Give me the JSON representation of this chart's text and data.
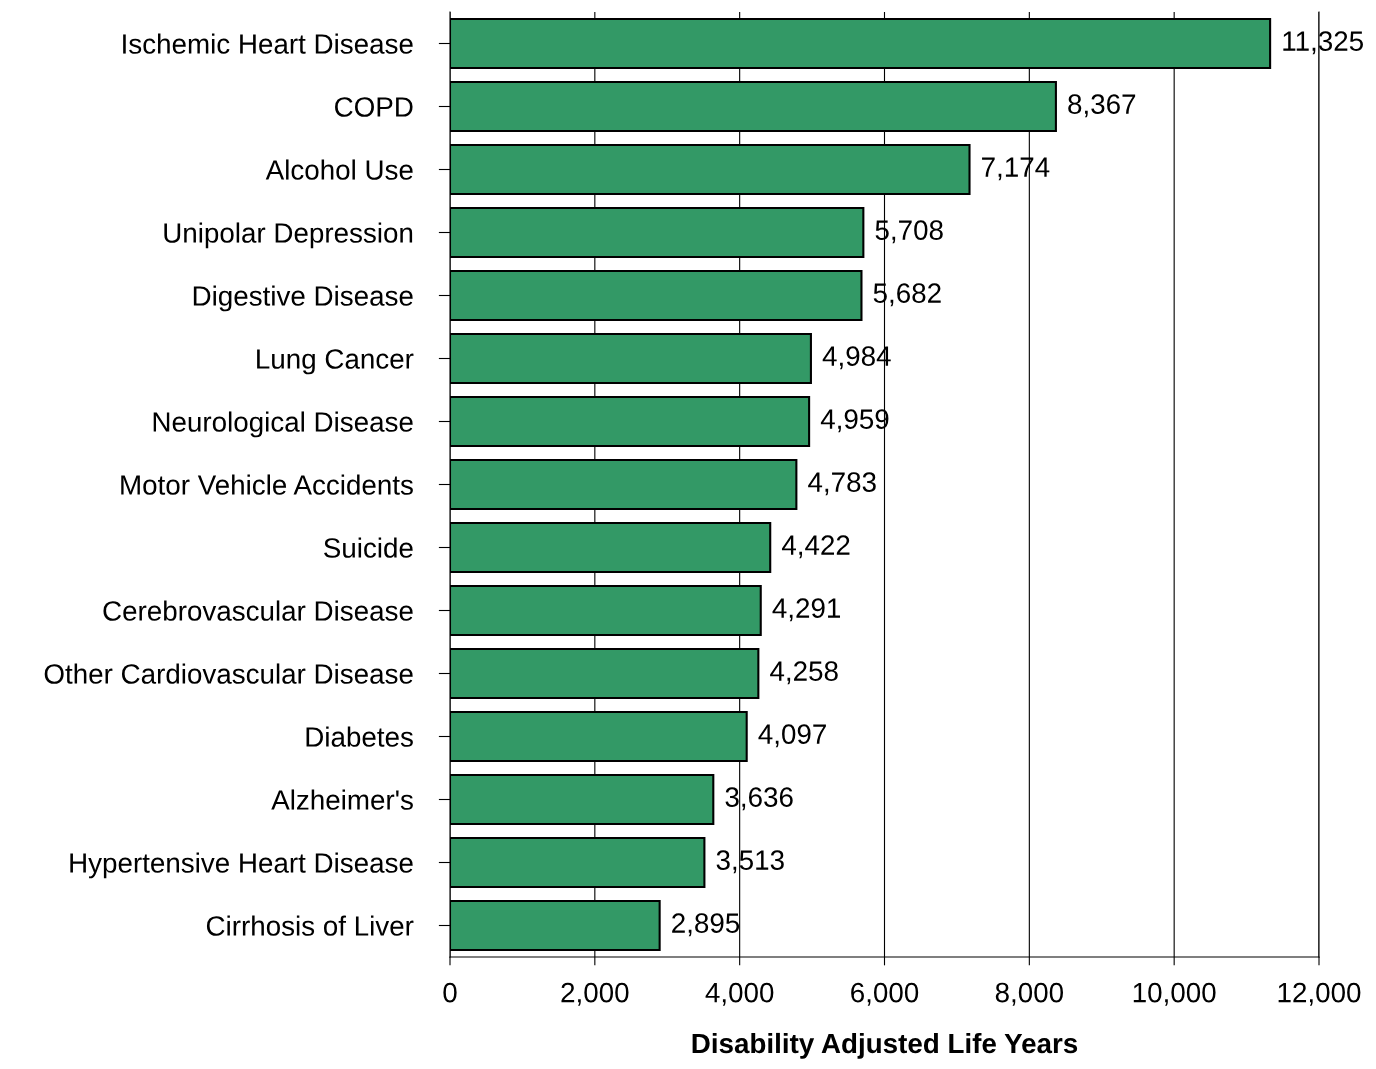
{
  "chart_data": {
    "type": "bar",
    "orientation": "horizontal",
    "xlabel": "Disability Adjusted Life Years",
    "categories": [
      "Ischemic Heart Disease",
      "COPD",
      "Alcohol Use",
      "Unipolar Depression",
      "Digestive Disease",
      "Lung Cancer",
      "Neurological Disease",
      "Motor Vehicle Accidents",
      "Suicide",
      "Cerebrovascular Disease",
      "Other Cardiovascular Disease",
      "Diabetes",
      "Alzheimer's",
      "Hypertensive Heart Disease",
      "Cirrhosis of Liver"
    ],
    "values": [
      11325,
      8367,
      7174,
      5708,
      5682,
      4984,
      4959,
      4783,
      4422,
      4291,
      4258,
      4097,
      3636,
      3513,
      2895
    ],
    "value_labels": [
      "11,325",
      "8,367",
      "7,174",
      "5,708",
      "5,682",
      "4,984",
      "4,959",
      "4,783",
      "4,422",
      "4,291",
      "4,258",
      "4,097",
      "3,636",
      "3,513",
      "2,895"
    ],
    "color": "#339966",
    "xlim": [
      0,
      12000
    ],
    "xticks": [
      0,
      {
        "value": 2000,
        "label": "2,000"
      },
      {
        "value": 4000,
        "label": "4,000"
      },
      {
        "value": 6000,
        "label": "6,000"
      },
      {
        "value": 8000,
        "label": "8,000"
      },
      {
        "value": 10000,
        "label": "10,000"
      },
      {
        "value": 12000,
        "label": "12,000"
      }
    ],
    "grid": "x",
    "legend": false
  }
}
